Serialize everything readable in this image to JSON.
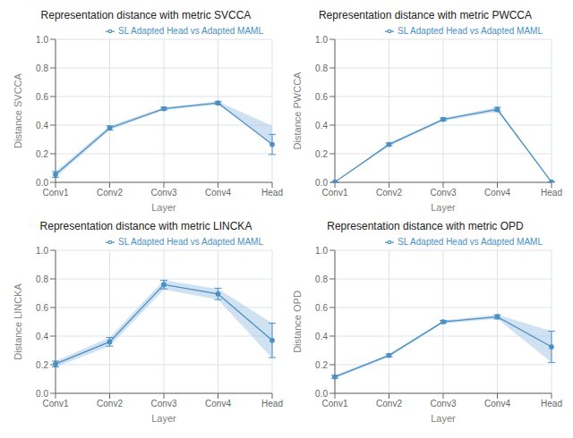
{
  "chart_data": [
    {
      "type": "line",
      "title": "Representation distance with metric SVCCA",
      "x_label": "Layer",
      "y_label": "Distance SVCCA",
      "categories": [
        "Conv1",
        "Conv2",
        "Conv3",
        "Conv4",
        "Head"
      ],
      "series": [
        {
          "name": "SL Adapted Head vs Adapted MAML",
          "color": "#4a90c4",
          "marker": "circle",
          "values": [
            0.055,
            0.38,
            0.515,
            0.555,
            0.265
          ],
          "errors": [
            0.02,
            0.015,
            0.01,
            0.01,
            0.07
          ]
        }
      ],
      "band": {
        "color": "#aac8e8",
        "lower": [
          0.035,
          0.365,
          0.505,
          0.545,
          0.27
        ],
        "upper": [
          0.075,
          0.395,
          0.525,
          0.565,
          0.395
        ]
      },
      "ylim": [
        0.0,
        1.0
      ],
      "yticks": [
        {
          "value": 0.0,
          "label": "0.0"
        },
        0.2,
        0.4,
        0.6,
        0.8,
        {
          "value": 1.0,
          "label": "1.0"
        }
      ],
      "grid": true,
      "legend": "upper right"
    },
    {
      "type": "line",
      "title": "Representation distance with metric PWCCA",
      "x_label": "Layer",
      "y_label": "Distance PWCCA",
      "categories": [
        "Conv1",
        "Conv2",
        "Conv3",
        "Conv4",
        "Head"
      ],
      "series": [
        {
          "name": "SL Adapted Head vs Adapted MAML",
          "color": "#4a90c4",
          "marker": "circle",
          "values": [
            0.002,
            0.265,
            0.44,
            0.51,
            0.002
          ],
          "errors": [
            0.001,
            0.01,
            0.01,
            0.015,
            0.001
          ]
        }
      ],
      "band": {
        "color": "#aac8e8",
        "lower": [
          0.001,
          0.255,
          0.43,
          0.495,
          0.001
        ],
        "upper": [
          0.003,
          0.275,
          0.45,
          0.525,
          0.003
        ]
      },
      "ylim": [
        0.0,
        1.0
      ],
      "yticks": [
        {
          "value": 0.0,
          "label": "0.0"
        },
        0.2,
        0.4,
        0.6,
        0.8,
        {
          "value": 1.0,
          "label": "1.0"
        }
      ],
      "grid": true,
      "legend": "upper right"
    },
    {
      "type": "line",
      "title": "Representation distance with metric LINCKA",
      "x_label": "Layer",
      "y_label": "Distance LINCKA",
      "categories": [
        "Conv1",
        "Conv2",
        "Conv3",
        "Conv4",
        "Head"
      ],
      "series": [
        {
          "name": "SL Adapted Head vs Adapted MAML",
          "color": "#4a90c4",
          "marker": "circle",
          "values": [
            0.205,
            0.36,
            0.76,
            0.695,
            0.37
          ],
          "errors": [
            0.02,
            0.03,
            0.03,
            0.04,
            0.12
          ]
        }
      ],
      "band": {
        "color": "#aac8e8",
        "lower": [
          0.185,
          0.33,
          0.725,
          0.655,
          0.245
        ],
        "upper": [
          0.225,
          0.39,
          0.79,
          0.73,
          0.49
        ]
      },
      "ylim": [
        0.0,
        1.0
      ],
      "yticks": [
        {
          "value": 0.0,
          "label": "0.0"
        },
        0.2,
        0.4,
        0.6,
        0.8,
        {
          "value": 1.0,
          "label": "1.0"
        }
      ],
      "grid": true,
      "legend": "upper right"
    },
    {
      "type": "line",
      "title": "Representation distance with metric OPD",
      "x_label": "Layer",
      "y_label": "Distance OPD",
      "categories": [
        "Conv1",
        "Conv2",
        "Conv3",
        "Conv4",
        "Head"
      ],
      "series": [
        {
          "name": "SL Adapted Head vs Adapted MAML",
          "color": "#4a90c4",
          "marker": "circle",
          "values": [
            0.115,
            0.265,
            0.5,
            0.535,
            0.325
          ],
          "errors": [
            0.01,
            0.01,
            0.01,
            0.015,
            0.11
          ]
        }
      ],
      "band": {
        "color": "#aac8e8",
        "lower": [
          0.105,
          0.255,
          0.49,
          0.52,
          0.215
        ],
        "upper": [
          0.125,
          0.275,
          0.51,
          0.55,
          0.435
        ]
      },
      "ylim": [
        0.0,
        1.0
      ],
      "yticks": [
        {
          "value": 0.0,
          "label": "0.0"
        },
        0.2,
        0.4,
        0.6,
        0.8,
        {
          "value": 1.0,
          "label": "1.0"
        }
      ],
      "grid": true,
      "legend": "upper right"
    }
  ]
}
